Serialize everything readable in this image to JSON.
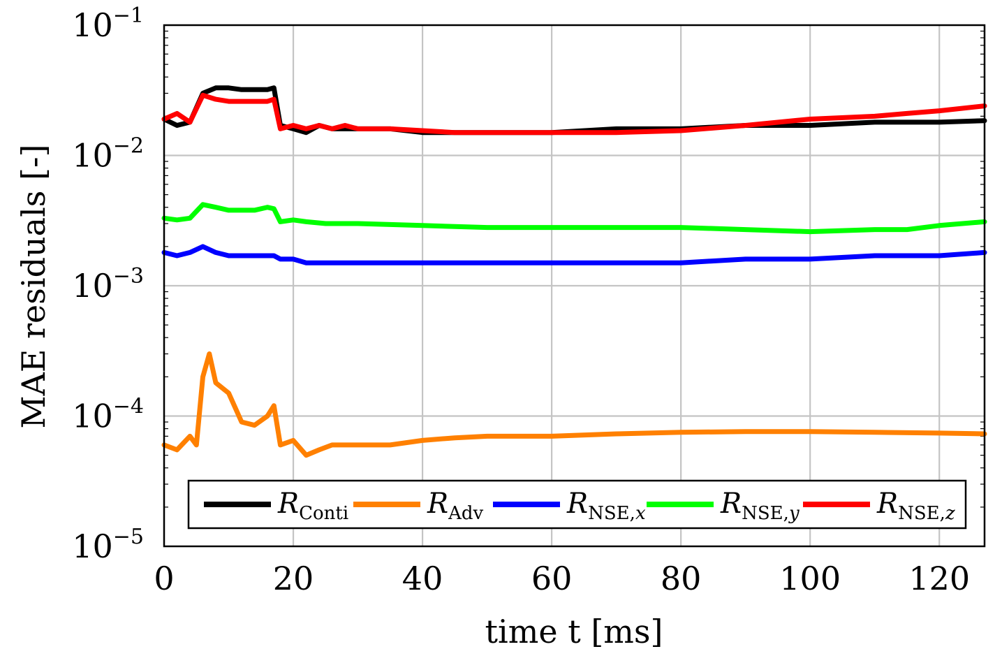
{
  "chart_data": {
    "type": "line",
    "title": "",
    "xlabel": "time t [ms]",
    "ylabel": "MAE residuals [-]",
    "xlim": [
      0,
      127
    ],
    "ylim": [
      1e-05,
      0.1
    ],
    "yscale": "log",
    "grid": true,
    "legend_position": "bottom",
    "x_ticks": [
      0,
      20,
      40,
      60,
      80,
      100,
      120
    ],
    "y_ticks": [
      {
        "base": "10",
        "exp": "−5",
        "value": 1e-05
      },
      {
        "base": "10",
        "exp": "−4",
        "value": 0.0001
      },
      {
        "base": "10",
        "exp": "−3",
        "value": 0.001
      },
      {
        "base": "10",
        "exp": "−2",
        "value": 0.01
      },
      {
        "base": "10",
        "exp": "−1",
        "value": 0.1
      }
    ],
    "series": [
      {
        "name": "Conti",
        "symbol": "R",
        "subscript": "Conti",
        "color": "#000000",
        "x": [
          0,
          2,
          4,
          6,
          8,
          10,
          12,
          14,
          16,
          17,
          18,
          20,
          22,
          24,
          26,
          28,
          30,
          35,
          40,
          45,
          50,
          60,
          70,
          80,
          90,
          100,
          110,
          120,
          127
        ],
        "y": [
          0.019,
          0.017,
          0.018,
          0.03,
          0.033,
          0.033,
          0.032,
          0.032,
          0.032,
          0.033,
          0.017,
          0.016,
          0.015,
          0.017,
          0.016,
          0.016,
          0.016,
          0.016,
          0.015,
          0.015,
          0.015,
          0.015,
          0.016,
          0.016,
          0.017,
          0.017,
          0.018,
          0.018,
          0.0185
        ]
      },
      {
        "name": "Adv",
        "symbol": "R",
        "subscript": "Adv",
        "color": "#ff8000",
        "x": [
          0,
          2,
          4,
          5,
          6,
          7,
          8,
          10,
          12,
          14,
          16,
          17,
          18,
          20,
          22,
          24,
          26,
          28,
          30,
          35,
          40,
          45,
          50,
          60,
          70,
          80,
          90,
          100,
          110,
          120,
          127
        ],
        "y": [
          6e-05,
          5.5e-05,
          7e-05,
          6e-05,
          0.0002,
          0.0003,
          0.00018,
          0.00015,
          9e-05,
          8.5e-05,
          0.0001,
          0.00012,
          6e-05,
          6.5e-05,
          5e-05,
          5.5e-05,
          6e-05,
          6e-05,
          6e-05,
          6e-05,
          6.5e-05,
          6.8e-05,
          7e-05,
          7e-05,
          7.3e-05,
          7.5e-05,
          7.6e-05,
          7.6e-05,
          7.5e-05,
          7.4e-05,
          7.3e-05
        ]
      },
      {
        "name": "NSE,x",
        "symbol": "R",
        "subscript": "NSE,",
        "subscript_var": "x",
        "color": "#0000ff",
        "x": [
          0,
          2,
          4,
          6,
          8,
          10,
          14,
          17,
          18,
          20,
          22,
          25,
          30,
          40,
          50,
          60,
          70,
          80,
          90,
          100,
          110,
          120,
          127
        ],
        "y": [
          0.0018,
          0.0017,
          0.0018,
          0.002,
          0.0018,
          0.0017,
          0.0017,
          0.0017,
          0.0016,
          0.0016,
          0.0015,
          0.0015,
          0.0015,
          0.0015,
          0.0015,
          0.0015,
          0.0015,
          0.0015,
          0.0016,
          0.0016,
          0.0017,
          0.0017,
          0.0018
        ]
      },
      {
        "name": "NSE,y",
        "symbol": "R",
        "subscript": "NSE,",
        "subscript_var": "y",
        "color": "#00ff00",
        "x": [
          0,
          2,
          4,
          6,
          8,
          10,
          14,
          16,
          17,
          18,
          20,
          22,
          25,
          30,
          40,
          50,
          60,
          70,
          80,
          90,
          100,
          110,
          115,
          120,
          127
        ],
        "y": [
          0.0033,
          0.0032,
          0.0033,
          0.0042,
          0.004,
          0.0038,
          0.0038,
          0.004,
          0.0039,
          0.0031,
          0.0032,
          0.0031,
          0.003,
          0.003,
          0.0029,
          0.0028,
          0.0028,
          0.0028,
          0.0028,
          0.0027,
          0.0026,
          0.0027,
          0.0027,
          0.0029,
          0.0031
        ]
      },
      {
        "name": "NSE,z",
        "symbol": "R",
        "subscript": "NSE,",
        "subscript_var": "z",
        "color": "#ff0000",
        "x": [
          0,
          2,
          4,
          6,
          8,
          10,
          14,
          16,
          17,
          18,
          20,
          22,
          24,
          26,
          28,
          30,
          35,
          40,
          45,
          50,
          60,
          70,
          80,
          90,
          100,
          110,
          115,
          120,
          127
        ],
        "y": [
          0.019,
          0.021,
          0.018,
          0.029,
          0.027,
          0.026,
          0.026,
          0.026,
          0.027,
          0.016,
          0.017,
          0.016,
          0.017,
          0.016,
          0.017,
          0.016,
          0.016,
          0.0155,
          0.015,
          0.015,
          0.015,
          0.015,
          0.0155,
          0.017,
          0.019,
          0.02,
          0.021,
          0.022,
          0.024
        ]
      }
    ]
  }
}
